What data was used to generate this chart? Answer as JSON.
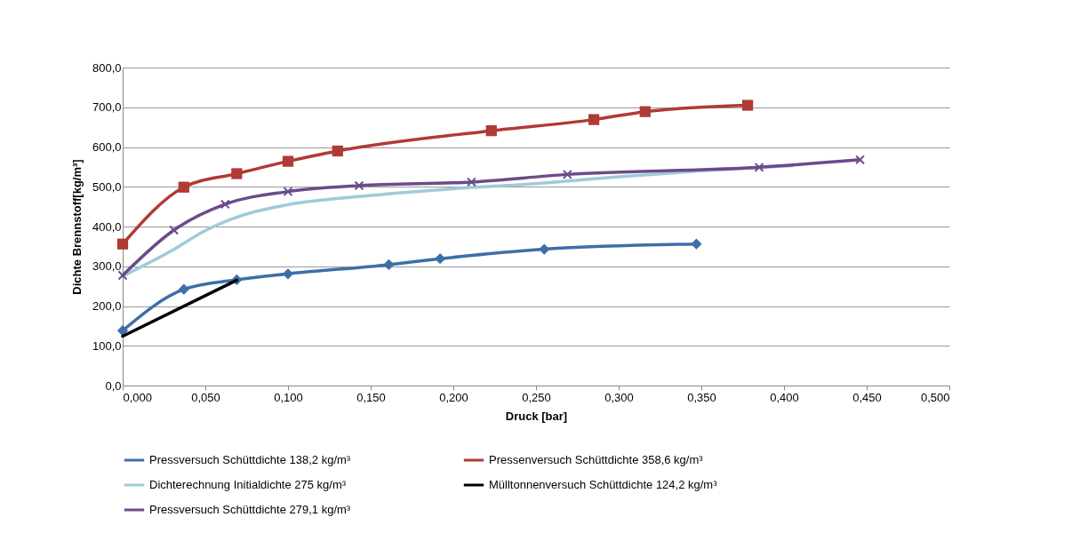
{
  "chart_data": {
    "type": "line",
    "xlabel": "Druck [bar]",
    "ylabel": "Dichte Brennstoff[kg/m³]",
    "xlim": [
      0,
      0.5
    ],
    "ylim": [
      0,
      800
    ],
    "xticks": [
      {
        "value": 0,
        "label": "0,000"
      },
      {
        "value": 0.05,
        "label": "0,050"
      },
      {
        "value": 0.1,
        "label": "0,100"
      },
      {
        "value": 0.15,
        "label": "0,150"
      },
      {
        "value": 0.2,
        "label": "0,200"
      },
      {
        "value": 0.25,
        "label": "0,250"
      },
      {
        "value": 0.3,
        "label": "0,300"
      },
      {
        "value": 0.35,
        "label": "0,350"
      },
      {
        "value": 0.4,
        "label": "0,400"
      },
      {
        "value": 0.45,
        "label": "0,450"
      },
      {
        "value": 0.5,
        "label": "0,500"
      }
    ],
    "yticks": [
      {
        "value": 0,
        "label": "0,0"
      },
      {
        "value": 100,
        "label": "100,0"
      },
      {
        "value": 200,
        "label": "200,0"
      },
      {
        "value": 300,
        "label": "300,0"
      },
      {
        "value": 400,
        "label": "400,0"
      },
      {
        "value": 500,
        "label": "500,0"
      },
      {
        "value": 600,
        "label": "600,0"
      },
      {
        "value": 700,
        "label": "700,0"
      },
      {
        "value": 800,
        "label": "800,0"
      }
    ],
    "grid": "y",
    "legend": "bottom",
    "series": [
      {
        "name": "Pressversuch Schüttdichte 138,2 kg/m³",
        "color": "#3d6fa8",
        "marker": "diamond",
        "x": [
          0,
          0.037,
          0.069,
          0.1,
          0.161,
          0.192,
          0.255,
          0.347
        ],
        "values": [
          138,
          242,
          266,
          281,
          304,
          319,
          343,
          356
        ]
      },
      {
        "name": "Pressenversuch Schüttdichte 358,6 kg/m³",
        "color": "#b03a35",
        "marker": "square",
        "x": [
          0,
          0.037,
          0.069,
          0.1,
          0.13,
          0.223,
          0.285,
          0.316,
          0.378
        ],
        "values": [
          356,
          499,
          533,
          564,
          590,
          641,
          669,
          689,
          705
        ]
      },
      {
        "name": "Dichterechnung Initialdichte 275 kg/m³",
        "color": "#9fcbd9",
        "marker": "none",
        "x": [
          0,
          0.03,
          0.05,
          0.07,
          0.1,
          0.15,
          0.2,
          0.25,
          0.3,
          0.35,
          0.405
        ],
        "values": [
          275,
          340,
          390,
          425,
          455,
          478,
          495,
          508,
          525,
          540,
          553
        ]
      },
      {
        "name": "Mülltonnenversuch Schüttdichte 124,2 kg/m³",
        "color": "#000000",
        "marker": "none",
        "x": [
          0,
          0.069
        ],
        "values": [
          124,
          265
        ]
      },
      {
        "name": "Pressversuch Schüttdichte 279,1 kg/m³",
        "color": "#6b4a8c",
        "marker": "cross",
        "x": [
          0,
          0.031,
          0.062,
          0.1,
          0.143,
          0.211,
          0.269,
          0.385,
          0.446
        ],
        "values": [
          277,
          391,
          456,
          488,
          503,
          512,
          531,
          549,
          568
        ]
      }
    ]
  }
}
